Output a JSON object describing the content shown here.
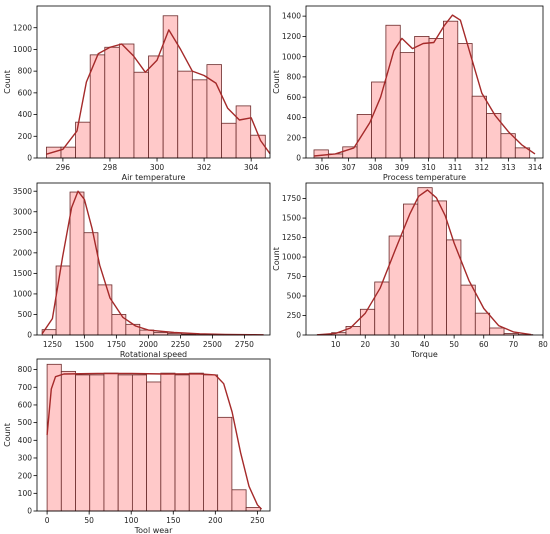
{
  "style": {
    "bar_fill": "#ffc9c9",
    "bar_stroke": "#6b2b2b",
    "kde_color": "#a52a2a",
    "axis_color": "#000000"
  },
  "chart_data": [
    {
      "id": "air-temperature",
      "type": "bar",
      "xlabel": "Air temperature",
      "ylabel": "Count",
      "xlim": [
        294.9,
        304.8
      ],
      "ylim": [
        0,
        1400
      ],
      "xticks": [
        296,
        298,
        300,
        302,
        304
      ],
      "yticks": [
        0,
        200,
        400,
        600,
        800,
        1000,
        1200
      ],
      "bin_start": 295.3,
      "bin_width": 0.62,
      "values": [
        100,
        100,
        330,
        950,
        1020,
        1050,
        790,
        940,
        1310,
        800,
        720,
        860,
        320,
        480,
        210
      ],
      "kde": [
        [
          295.3,
          35
        ],
        [
          296,
          80
        ],
        [
          296.6,
          250
        ],
        [
          297,
          700
        ],
        [
          297.5,
          960
        ],
        [
          298,
          1020
        ],
        [
          298.5,
          1050
        ],
        [
          299,
          940
        ],
        [
          299.5,
          790
        ],
        [
          300,
          900
        ],
        [
          300.5,
          1180
        ],
        [
          301,
          1000
        ],
        [
          301.5,
          800
        ],
        [
          302,
          760
        ],
        [
          302.5,
          690
        ],
        [
          303,
          460
        ],
        [
          303.5,
          350
        ],
        [
          304,
          370
        ],
        [
          304.4,
          160
        ],
        [
          304.8,
          40
        ]
      ]
    },
    {
      "id": "process-temperature",
      "type": "bar",
      "xlabel": "Process temperature",
      "ylabel": "Count",
      "xlim": [
        305.4,
        314.3
      ],
      "ylim": [
        0,
        1500
      ],
      "xticks": [
        306,
        307,
        308,
        309,
        310,
        311,
        312,
        313,
        314
      ],
      "yticks": [
        0,
        200,
        400,
        600,
        800,
        1000,
        1200,
        1400
      ],
      "bin_start": 305.7,
      "bin_width": 0.54,
      "values": [
        80,
        40,
        110,
        430,
        750,
        1310,
        1040,
        1200,
        1180,
        1350,
        1130,
        610,
        440,
        240,
        100
      ],
      "kde": [
        [
          305.7,
          20
        ],
        [
          306.5,
          40
        ],
        [
          307.2,
          100
        ],
        [
          307.8,
          350
        ],
        [
          308.2,
          600
        ],
        [
          308.7,
          1060
        ],
        [
          309,
          1180
        ],
        [
          309.4,
          1080
        ],
        [
          309.8,
          1130
        ],
        [
          310.2,
          1140
        ],
        [
          310.6,
          1310
        ],
        [
          310.9,
          1410
        ],
        [
          311.2,
          1360
        ],
        [
          311.6,
          1000
        ],
        [
          312,
          640
        ],
        [
          312.5,
          420
        ],
        [
          313,
          260
        ],
        [
          313.5,
          130
        ],
        [
          314,
          40
        ]
      ]
    },
    {
      "id": "rotational-speed",
      "type": "bar",
      "xlabel": "Rotational speed",
      "ylabel": "",
      "xlim": [
        1130,
        2950
      ],
      "ylim": [
        0,
        3700
      ],
      "xticks": [
        1250,
        1500,
        1750,
        2000,
        2250,
        2500,
        2750
      ],
      "yticks": [
        0,
        500,
        1000,
        1500,
        2000,
        2500,
        3000,
        3500
      ],
      "bin_start": 1170,
      "bin_width": 109,
      "values": [
        130,
        1680,
        3480,
        2490,
        1220,
        500,
        260,
        120,
        60,
        40,
        20,
        10,
        10,
        5,
        5
      ],
      "kde": [
        [
          1170,
          30
        ],
        [
          1250,
          400
        ],
        [
          1330,
          1900
        ],
        [
          1400,
          3100
        ],
        [
          1450,
          3500
        ],
        [
          1500,
          3300
        ],
        [
          1560,
          2600
        ],
        [
          1620,
          1700
        ],
        [
          1700,
          900
        ],
        [
          1800,
          430
        ],
        [
          1900,
          220
        ],
        [
          2000,
          120
        ],
        [
          2200,
          60
        ],
        [
          2400,
          30
        ],
        [
          2600,
          15
        ],
        [
          2800,
          8
        ],
        [
          2900,
          5
        ]
      ]
    },
    {
      "id": "torque",
      "type": "bar",
      "xlabel": "Torque",
      "ylabel": "Count",
      "xlim": [
        0,
        80
      ],
      "ylim": [
        0,
        1950
      ],
      "xticks": [
        10,
        20,
        30,
        40,
        50,
        60,
        70,
        80
      ],
      "yticks": [
        0,
        250,
        500,
        750,
        1000,
        1250,
        1500,
        1750
      ],
      "bin_start": 3.8,
      "bin_width": 4.85,
      "values": [
        5,
        30,
        110,
        330,
        680,
        1270,
        1680,
        1890,
        1720,
        1220,
        640,
        280,
        90,
        20,
        5
      ],
      "kde": [
        [
          3.8,
          2
        ],
        [
          10,
          20
        ],
        [
          15,
          90
        ],
        [
          20,
          280
        ],
        [
          25,
          600
        ],
        [
          30,
          1080
        ],
        [
          35,
          1550
        ],
        [
          38,
          1780
        ],
        [
          41,
          1860
        ],
        [
          44,
          1760
        ],
        [
          47,
          1530
        ],
        [
          50,
          1180
        ],
        [
          55,
          700
        ],
        [
          60,
          340
        ],
        [
          65,
          120
        ],
        [
          70,
          40
        ],
        [
          76,
          5
        ]
      ]
    },
    {
      "id": "tool-wear",
      "type": "bar",
      "xlabel": "Tool wear",
      "ylabel": "Count",
      "xlim": [
        -12,
        265
      ],
      "ylim": [
        0,
        860
      ],
      "xticks": [
        0,
        50,
        100,
        150,
        200,
        250
      ],
      "yticks": [
        0,
        100,
        200,
        300,
        400,
        500,
        600,
        700,
        800
      ],
      "bin_start": 0,
      "bin_width": 16.9,
      "values": [
        830,
        790,
        770,
        770,
        780,
        770,
        770,
        730,
        780,
        770,
        780,
        770,
        530,
        120,
        20
      ],
      "kde": [
        [
          0,
          430
        ],
        [
          5,
          690
        ],
        [
          10,
          760
        ],
        [
          20,
          775
        ],
        [
          60,
          778
        ],
        [
          100,
          778
        ],
        [
          140,
          775
        ],
        [
          180,
          776
        ],
        [
          200,
          770
        ],
        [
          210,
          720
        ],
        [
          220,
          560
        ],
        [
          230,
          330
        ],
        [
          240,
          140
        ],
        [
          250,
          35
        ],
        [
          255,
          10
        ]
      ]
    }
  ]
}
